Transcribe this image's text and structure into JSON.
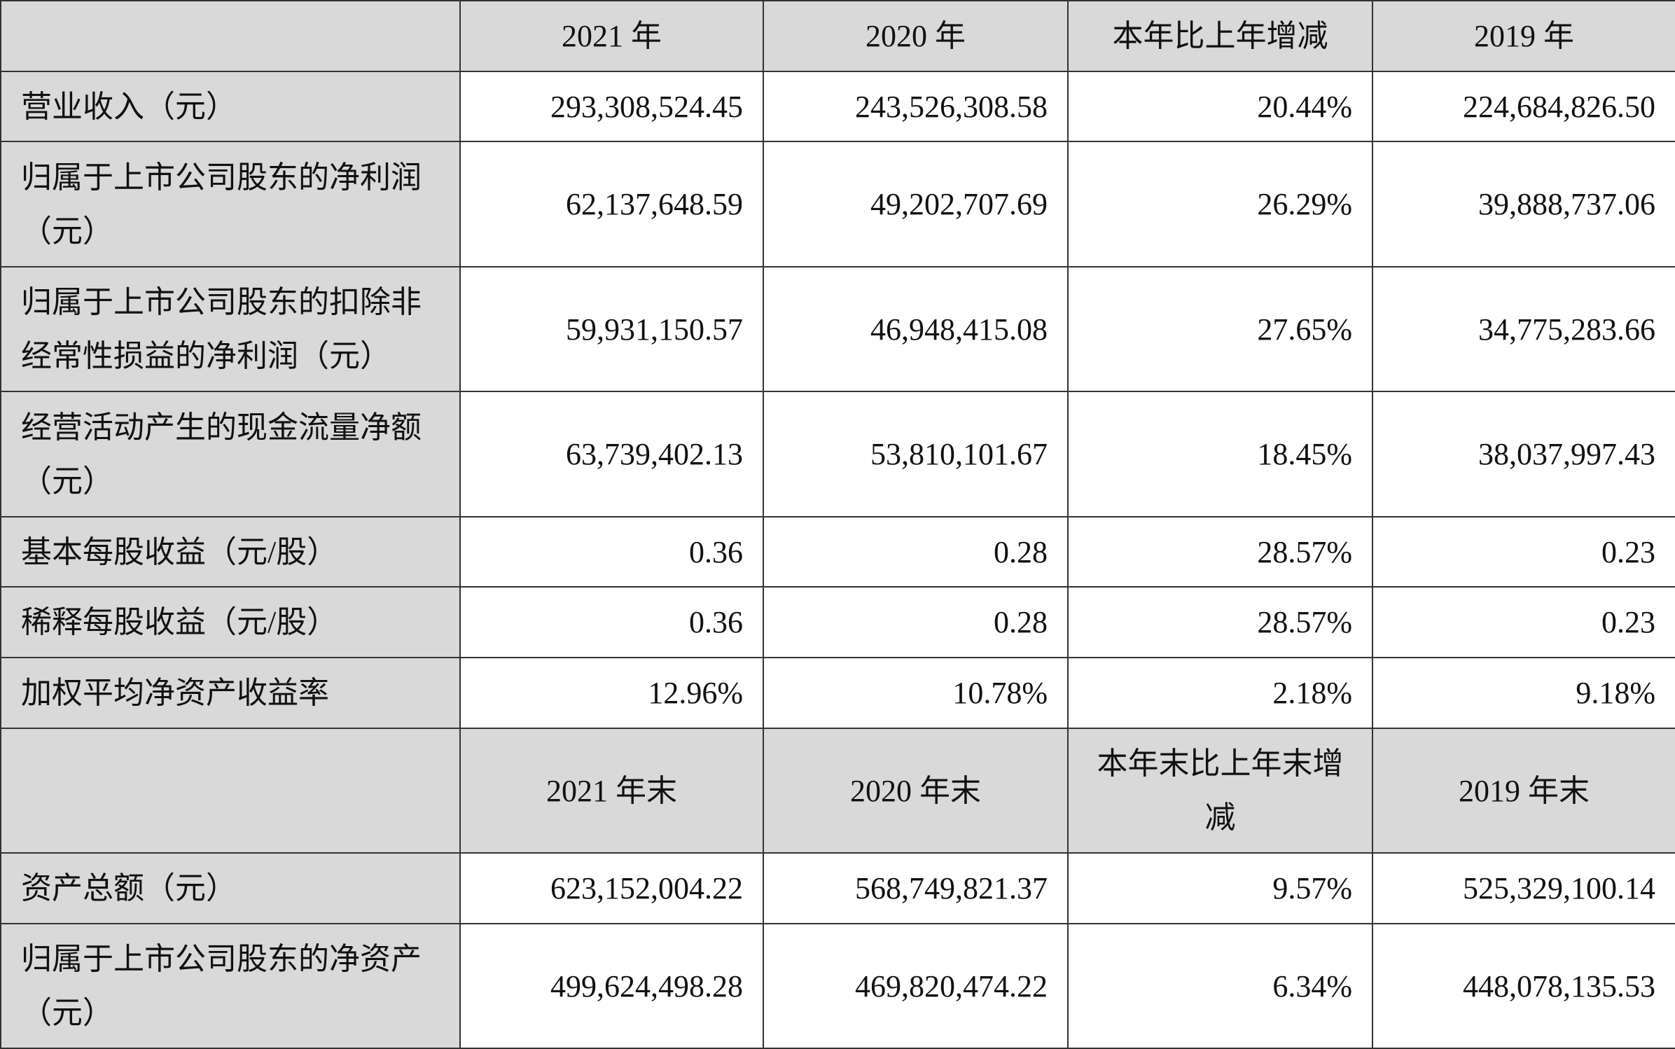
{
  "table": {
    "header1": [
      "2021 年",
      "2020 年",
      "本年比上年增减",
      "2019 年"
    ],
    "rows1": [
      {
        "label": "营业收入（元）",
        "values": [
          "293,308,524.45",
          "243,526,308.58",
          "20.44%",
          "224,684,826.50"
        ]
      },
      {
        "label": "归属于上市公司股东的净利润（元）",
        "values": [
          "62,137,648.59",
          "49,202,707.69",
          "26.29%",
          "39,888,737.06"
        ]
      },
      {
        "label": "归属于上市公司股东的扣除非经常性损益的净利润（元）",
        "values": [
          "59,931,150.57",
          "46,948,415.08",
          "27.65%",
          "34,775,283.66"
        ]
      },
      {
        "label": "经营活动产生的现金流量净额（元）",
        "values": [
          "63,739,402.13",
          "53,810,101.67",
          "18.45%",
          "38,037,997.43"
        ]
      },
      {
        "label": "基本每股收益（元/股）",
        "values": [
          "0.36",
          "0.28",
          "28.57%",
          "0.23"
        ]
      },
      {
        "label": "稀释每股收益（元/股）",
        "values": [
          "0.36",
          "0.28",
          "28.57%",
          "0.23"
        ]
      },
      {
        "label": "加权平均净资产收益率",
        "values": [
          "12.96%",
          "10.78%",
          "2.18%",
          "9.18%"
        ]
      }
    ],
    "header2": [
      "2021 年末",
      "2020 年末",
      "本年末比上年末增减",
      "2019 年末"
    ],
    "rows2": [
      {
        "label": "资产总额（元）",
        "values": [
          "623,152,004.22",
          "568,749,821.37",
          "9.57%",
          "525,329,100.14"
        ]
      },
      {
        "label": "归属于上市公司股东的净资产（元）",
        "values": [
          "499,624,498.28",
          "469,820,474.22",
          "6.34%",
          "448,078,135.53"
        ]
      }
    ]
  }
}
